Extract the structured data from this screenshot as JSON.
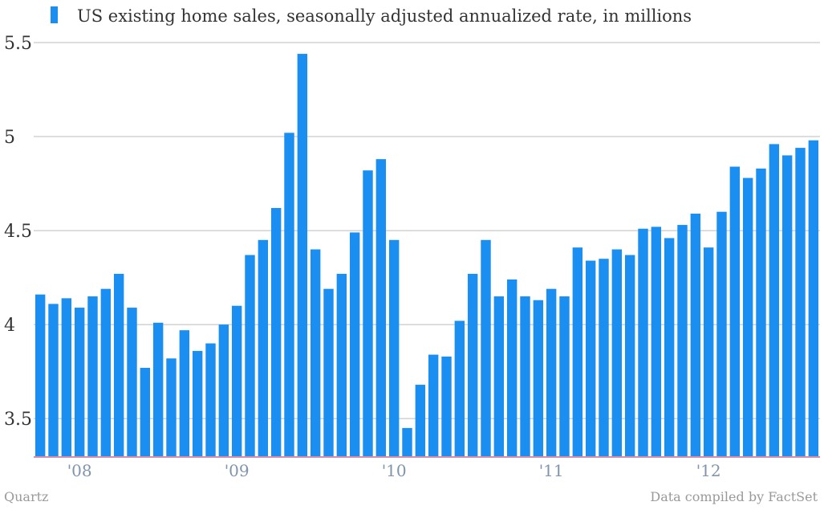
{
  "chart_data": {
    "type": "bar",
    "title": "",
    "xlabel": "",
    "ylabel": "",
    "legend": {
      "placement": "top-left",
      "entries": [
        "US existing home sales, seasonally adjusted annualized rate, in millions"
      ]
    },
    "series": [
      {
        "name": "US existing home sales, seasonally adjusted annualized rate, in millions",
        "color": "#1a8ff1",
        "values": [
          4.16,
          4.11,
          4.14,
          4.09,
          4.15,
          4.19,
          4.27,
          4.09,
          3.77,
          4.01,
          3.82,
          3.97,
          3.86,
          3.9,
          4.0,
          4.1,
          4.37,
          4.45,
          4.62,
          5.02,
          5.44,
          4.4,
          4.19,
          4.27,
          4.49,
          4.82,
          4.88,
          4.45,
          3.45,
          3.68,
          3.84,
          3.83,
          4.02,
          4.27,
          4.45,
          4.15,
          4.24,
          4.15,
          4.13,
          4.19,
          4.15,
          4.41,
          4.34,
          4.35,
          4.4,
          4.37,
          4.51,
          4.52,
          4.46,
          4.53,
          4.59,
          4.41,
          4.6,
          4.84,
          4.78,
          4.83,
          4.96,
          4.9,
          4.94,
          4.98
        ]
      }
    ],
    "x_tick_labels": [
      {
        "label": "'08",
        "bar_index": 3
      },
      {
        "label": "'09",
        "bar_index": 15
      },
      {
        "label": "'10",
        "bar_index": 27
      },
      {
        "label": "'11",
        "bar_index": 39
      },
      {
        "label": "'12",
        "bar_index": 51
      }
    ],
    "y_ticks": [
      {
        "value": 3.5,
        "label": "3.5"
      },
      {
        "value": 4,
        "label": "4"
      },
      {
        "value": 4.5,
        "label": "4.5"
      },
      {
        "value": 5,
        "label": "5"
      },
      {
        "value": 5.5,
        "label": "5.5"
      }
    ],
    "ylim": [
      3.3,
      5.5
    ],
    "grid": true,
    "colors": {
      "bar": "#1a8ff1",
      "grid": "#bbbbbb",
      "baseline": "#d98ca8"
    }
  },
  "footer": {
    "source_left": "Quartz",
    "source_right": "Data compiled by FactSet"
  }
}
